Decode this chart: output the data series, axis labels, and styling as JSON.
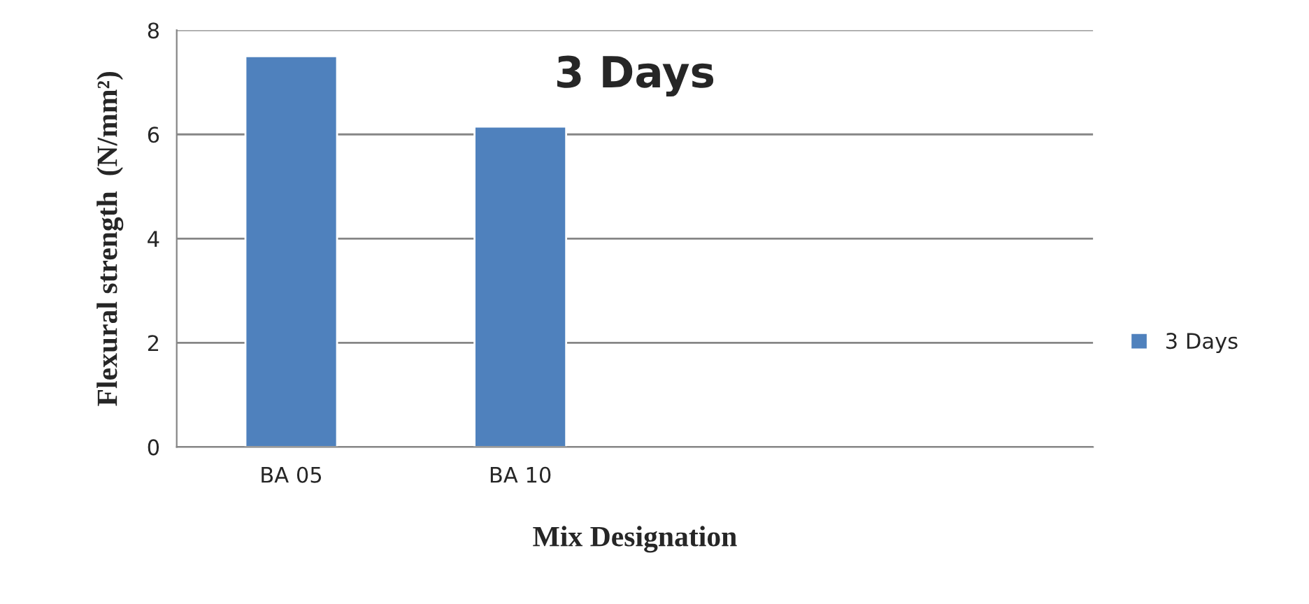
{
  "chart_data": {
    "type": "bar",
    "title": "3 Days",
    "xlabel": "Mix Designation",
    "ylabel": "Flexural strength  (N/mm²)",
    "categories": [
      "BA 05",
      "BA 10",
      null,
      null
    ],
    "series": [
      {
        "name": "3 Days",
        "color": "#4f81bd",
        "values": [
          7.5,
          6.15,
          null,
          null
        ]
      }
    ],
    "ylim": [
      0,
      8
    ],
    "yticks": [
      0,
      2,
      4,
      6,
      8
    ],
    "grid": "y",
    "legend": "right"
  }
}
